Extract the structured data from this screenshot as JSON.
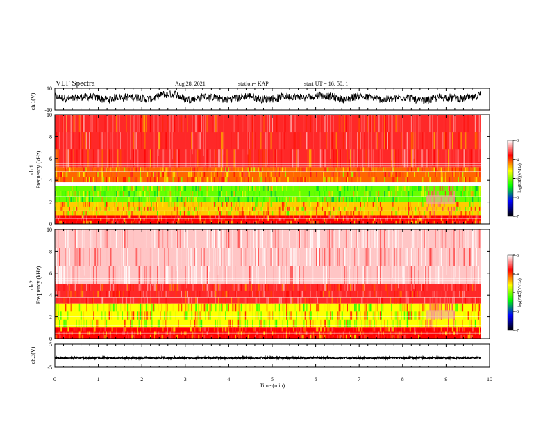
{
  "header": {
    "title": "VLF Spectra",
    "date": "Aug.28, 2021",
    "station": "station= KAP",
    "start_ut": "start  UT =   16: 50: 1"
  },
  "chart_data": [
    {
      "id": "ch1_waveform",
      "type": "line",
      "ylabel": "ch.1(V)",
      "ylim": [
        -10,
        10
      ],
      "yticks": [
        "10",
        "-10"
      ],
      "xlim": [
        0,
        10
      ],
      "color": "#000000",
      "notes": "Noisy broadband waveform, mostly between about -6 and +6 V, centered slightly above 0."
    },
    {
      "id": "ch1_spectrogram",
      "type": "heatmap",
      "ylabel": "Frequency (kHz)",
      "channel_label": "ch.1",
      "ylim": [
        0,
        10
      ],
      "yticks": [
        "0",
        "2",
        "4",
        "6",
        "8",
        "10"
      ],
      "xlim": [
        0,
        10
      ],
      "colorbar": {
        "label": "log(PSD)(V²/Hz)",
        "range": [
          -7,
          -3
        ],
        "ticks": [
          "-3",
          "-4",
          "-5",
          "-6",
          "-7"
        ],
        "colors": [
          "#ffffff",
          "#ff0000",
          "#ffff00",
          "#00ff00",
          "#0000ff",
          "#000000"
        ]
      },
      "bands": [
        {
          "from_khz": 5.2,
          "to_khz": 10.0,
          "dominant": "red",
          "level": -3.8
        },
        {
          "from_khz": 3.8,
          "to_khz": 5.2,
          "dominant": "red-yellow",
          "level": -4.2
        },
        {
          "from_khz": 2.0,
          "to_khz": 3.5,
          "dominant": "green",
          "level": -4.8
        },
        {
          "from_khz": 0.8,
          "to_khz": 2.0,
          "dominant": "yellow",
          "level": -4.4
        },
        {
          "from_khz": 0.0,
          "to_khz": 0.8,
          "dominant": "red",
          "level": -4.0
        }
      ],
      "change_at_min": 8.55
    },
    {
      "id": "ch2_spectrogram",
      "type": "heatmap",
      "ylabel": "Frequency (kHz)",
      "channel_label": "ch.2",
      "ylim": [
        0,
        10
      ],
      "yticks": [
        "0",
        "2",
        "4",
        "6",
        "8",
        "10"
      ],
      "xlim": [
        0,
        10
      ],
      "colorbar": {
        "label": "log(PSD)(V²/Hz)",
        "range": [
          -7,
          -3
        ],
        "ticks": [
          "-3",
          "-4",
          "-5",
          "-6",
          "-7"
        ],
        "colors": [
          "#ffffff",
          "#ff0000",
          "#ffff00",
          "#00ff00",
          "#0000ff",
          "#000000"
        ]
      },
      "bands": [
        {
          "from_khz": 5.0,
          "to_khz": 10.0,
          "dominant": "pink-white",
          "level": -3.2
        },
        {
          "from_khz": 3.2,
          "to_khz": 5.0,
          "dominant": "red",
          "level": -3.8
        },
        {
          "from_khz": 1.0,
          "to_khz": 3.2,
          "dominant": "yellow-green",
          "level": -4.5
        },
        {
          "from_khz": 0.0,
          "to_khz": 1.0,
          "dominant": "red",
          "level": -4.0
        }
      ],
      "change_at_min": 8.55
    },
    {
      "id": "ch3_waveform",
      "type": "line",
      "ylabel": "ch.3(V)",
      "ylim": [
        -5,
        5
      ],
      "yticks": [
        "5",
        "-5"
      ],
      "xlim": [
        0,
        10
      ],
      "color": "#000000",
      "notes": "Narrow constant band near -1 V."
    }
  ],
  "x_axis": {
    "label": "Time (min)",
    "ticks": [
      "0",
      "1",
      "2",
      "3",
      "4",
      "5",
      "6",
      "7",
      "8",
      "9",
      "10"
    ],
    "range": [
      0,
      10
    ]
  }
}
